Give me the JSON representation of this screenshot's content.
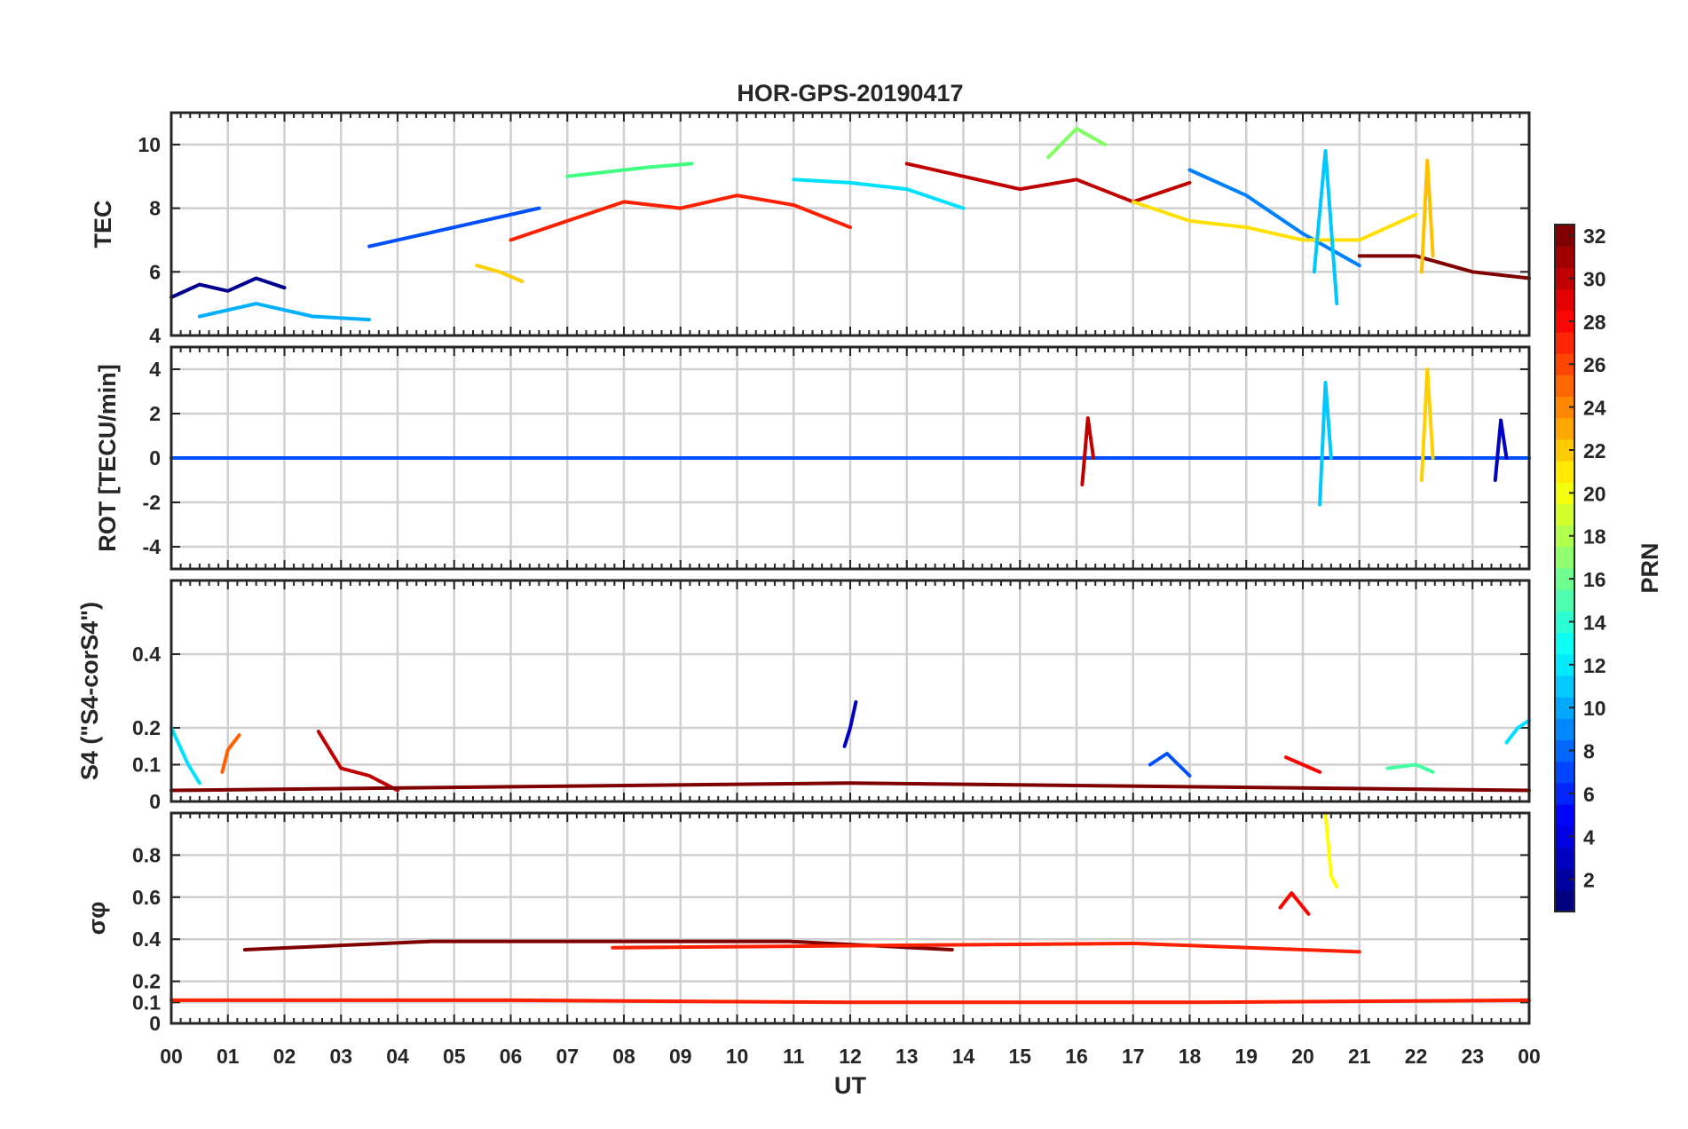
{
  "chart_data": {
    "type": "line",
    "title": "HOR-GPS-20190417",
    "xlabel": "UT",
    "x_ticks": [
      "00",
      "01",
      "02",
      "03",
      "04",
      "05",
      "06",
      "07",
      "08",
      "09",
      "10",
      "11",
      "12",
      "13",
      "14",
      "15",
      "16",
      "17",
      "18",
      "19",
      "20",
      "21",
      "22",
      "23",
      "00"
    ],
    "xlim": [
      0,
      24
    ],
    "grid": true,
    "panels": [
      {
        "id": "tec",
        "ylabel": "TEC",
        "ylim": [
          4,
          11
        ],
        "yticks": [
          4,
          6,
          8,
          10
        ],
        "series": [
          {
            "color": "#00008f",
            "x": [
              0,
              0.5,
              1,
              1.5,
              2
            ],
            "y": [
              5.2,
              5.6,
              5.4,
              5.8,
              5.5
            ]
          },
          {
            "color": "#0050ff",
            "x": [
              3.5,
              4.5,
              5.5,
              6.5
            ],
            "y": [
              6.8,
              7.2,
              7.6,
              8.0
            ]
          },
          {
            "color": "#00b0ff",
            "x": [
              0.5,
              1.5,
              2.5,
              3.5
            ],
            "y": [
              4.6,
              5.0,
              4.6,
              4.5
            ]
          },
          {
            "color": "#40ff80",
            "x": [
              7,
              8,
              8.5,
              9.2
            ],
            "y": [
              9.0,
              9.2,
              9.3,
              9.4
            ]
          },
          {
            "color": "#ffd000",
            "x": [
              5.4,
              5.8,
              6.2
            ],
            "y": [
              6.2,
              6.0,
              5.7
            ]
          },
          {
            "color": "#ff2000",
            "x": [
              6,
              7,
              8,
              9,
              10,
              11,
              12
            ],
            "y": [
              7.0,
              7.6,
              8.2,
              8.0,
              8.4,
              8.1,
              7.4
            ]
          },
          {
            "color": "#00e0ff",
            "x": [
              11,
              12,
              13,
              14
            ],
            "y": [
              8.9,
              8.8,
              8.6,
              8.0
            ]
          },
          {
            "color": "#c00000",
            "x": [
              13,
              14,
              15,
              16,
              17,
              18
            ],
            "y": [
              9.4,
              9.0,
              8.6,
              8.9,
              8.2,
              8.8
            ]
          },
          {
            "color": "#80ff60",
            "x": [
              15.5,
              16,
              16.5
            ],
            "y": [
              9.6,
              10.5,
              10.0
            ]
          },
          {
            "color": "#0080ff",
            "x": [
              18,
              19,
              20,
              21
            ],
            "y": [
              9.2,
              8.4,
              7.2,
              6.2
            ]
          },
          {
            "color": "#ffe000",
            "x": [
              17,
              18,
              19,
              20,
              21,
              22
            ],
            "y": [
              8.2,
              7.6,
              7.4,
              7.0,
              7.0,
              7.8
            ]
          },
          {
            "color": "#800000",
            "x": [
              21,
              22,
              23,
              24
            ],
            "y": [
              6.5,
              6.5,
              6.0,
              5.8
            ]
          },
          {
            "color": "#00c8ff",
            "x": [
              20.2,
              20.4,
              20.6
            ],
            "y": [
              6.0,
              9.8,
              5.0
            ]
          },
          {
            "color": "#ffc000",
            "x": [
              22.1,
              22.2,
              22.3
            ],
            "y": [
              6.0,
              9.5,
              6.5
            ]
          }
        ]
      },
      {
        "id": "rot",
        "ylabel": "ROT [TECU/min]",
        "ylim": [
          -5,
          5
        ],
        "yticks": [
          -4,
          -2,
          0,
          2,
          4
        ],
        "series": [
          {
            "color": "#0050ff",
            "x": [
              0,
              6,
              12,
              18,
              24
            ],
            "y": [
              0.0,
              0.0,
              0.0,
              0.0,
              0.0
            ]
          },
          {
            "color": "#c00000",
            "x": [
              16.1,
              16.2,
              16.3
            ],
            "y": [
              -1.2,
              1.8,
              0.0
            ]
          },
          {
            "color": "#00c8ff",
            "x": [
              20.3,
              20.4,
              20.5
            ],
            "y": [
              -2.1,
              3.4,
              0.0
            ]
          },
          {
            "color": "#ffd000",
            "x": [
              22.1,
              22.2,
              22.3
            ],
            "y": [
              -1.0,
              4.0,
              0.0
            ]
          },
          {
            "color": "#0000c0",
            "x": [
              23.4,
              23.5,
              23.6
            ],
            "y": [
              -1.0,
              1.7,
              0.0
            ]
          }
        ]
      },
      {
        "id": "s4",
        "ylabel": "S4 (\"S4-corS4\")",
        "ylim": [
          0,
          0.6
        ],
        "yticks": [
          0,
          0.1,
          0.2,
          0.4
        ],
        "series": [
          {
            "color": "#00e0ff",
            "x": [
              0,
              0.3,
              0.5
            ],
            "y": [
              0.2,
              0.1,
              0.05
            ]
          },
          {
            "color": "#ff6000",
            "x": [
              0.9,
              1.0,
              1.2
            ],
            "y": [
              0.08,
              0.14,
              0.18
            ]
          },
          {
            "color": "#c00000",
            "x": [
              2.6,
              3.0,
              3.5,
              4.0
            ],
            "y": [
              0.19,
              0.09,
              0.07,
              0.03
            ]
          },
          {
            "color": "#0000c0",
            "x": [
              11.9,
              12.0,
              12.1
            ],
            "y": [
              0.15,
              0.2,
              0.27
            ]
          },
          {
            "color": "#0050ff",
            "x": [
              17.3,
              17.6,
              18.0
            ],
            "y": [
              0.1,
              0.13,
              0.07
            ]
          },
          {
            "color": "#ff0000",
            "x": [
              19.7,
              20.0,
              20.3
            ],
            "y": [
              0.12,
              0.1,
              0.08
            ]
          },
          {
            "color": "#40ffa0",
            "x": [
              21.5,
              22.0,
              22.3
            ],
            "y": [
              0.09,
              0.1,
              0.08
            ]
          },
          {
            "color": "#00e0ff",
            "x": [
              23.6,
              23.8,
              24
            ],
            "y": [
              0.16,
              0.2,
              0.22
            ]
          },
          {
            "color": "#800000",
            "x": [
              0,
              6,
              12,
              18,
              24
            ],
            "y": [
              0.03,
              0.04,
              0.05,
              0.04,
              0.03
            ]
          }
        ]
      },
      {
        "id": "sigma",
        "ylabel": "σφ",
        "ylim": [
          0,
          1
        ],
        "yticks": [
          0,
          0.1,
          0.2,
          0.4,
          0.6,
          0.8
        ],
        "series": [
          {
            "color": "#ff2000",
            "x": [
              0,
              6,
              12,
              18,
              24
            ],
            "y": [
              0.11,
              0.11,
              0.1,
              0.1,
              0.11
            ]
          },
          {
            "color": "#800000",
            "x": [
              1.3,
              4.6,
              10.9,
              13.8
            ],
            "y": [
              0.35,
              0.39,
              0.39,
              0.35
            ]
          },
          {
            "color": "#ff0000",
            "x": [
              19.6,
              19.8,
              20.1
            ],
            "y": [
              0.55,
              0.62,
              0.52
            ]
          },
          {
            "color": "#ffff00",
            "x": [
              20.4,
              20.5,
              20.6
            ],
            "y": [
              1.0,
              0.7,
              0.65
            ]
          },
          {
            "color": "#ff2000",
            "x": [
              7.8,
              17.0,
              21.0
            ],
            "y": [
              0.36,
              0.38,
              0.34
            ]
          }
        ]
      }
    ],
    "colorbar": {
      "label": "PRN",
      "range": [
        1,
        32
      ],
      "ticks": [
        2,
        4,
        6,
        8,
        10,
        12,
        14,
        16,
        18,
        20,
        22,
        24,
        26,
        28,
        30,
        32
      ],
      "colormap": "jet"
    }
  }
}
